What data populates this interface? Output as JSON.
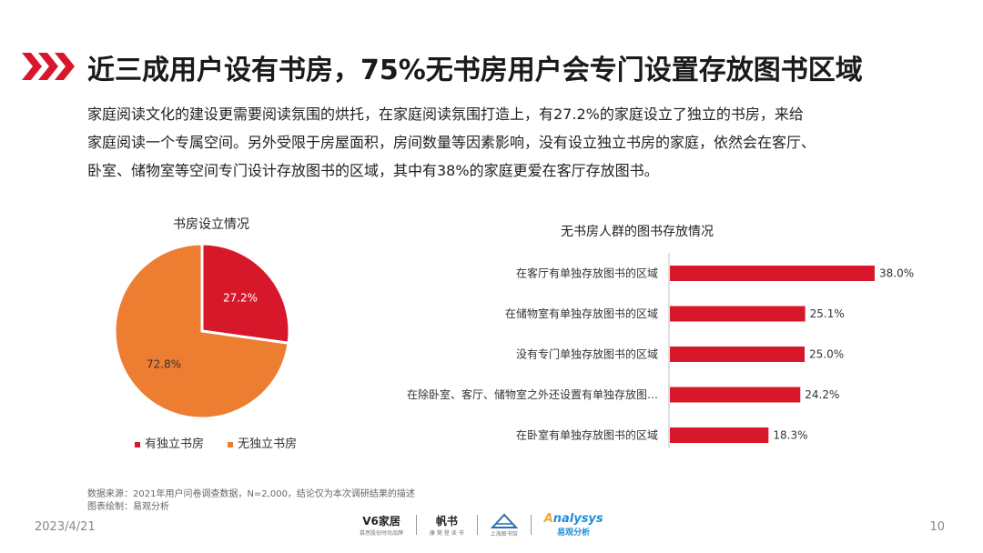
{
  "title": "近三成用户设有书房，75%无书房用户会专门设置存放图书区域",
  "intro_lines": [
    "家庭阅读文化的建设更需要阅读氛围的烘托，在家庭阅读氛围打造上，有27.2%的家庭设立了独立的书房，来给",
    "家庭阅读一个专属空间。另外受限于房屋面积，房间数量等因素影响，没有设立独立书房的家庭，依然会在客厅、",
    "卧室、储物室等空间专门设计存放图书的区域，其中有38%的家庭更爱在客厅存放图书。"
  ],
  "colors": {
    "accent": "#d7182a",
    "orange": "#ed7d31"
  },
  "chart_data": [
    {
      "type": "pie",
      "title": "书房设立情况",
      "slices": [
        {
          "label": "有独立书房",
          "value": 27.2,
          "display": "27.2%",
          "color": "#d7182a"
        },
        {
          "label": "无独立书房",
          "value": 72.8,
          "display": "72.8%",
          "color": "#ed7d31"
        }
      ],
      "legend_placement": "bottom"
    },
    {
      "type": "bar",
      "orientation": "horizontal",
      "title": "无书房人群的图书存放情况",
      "categories": [
        "在客厅有单独存放图书的区域",
        "在储物室有单独存放图书的区域",
        "没有专门单独存放图书的区域",
        "在除卧室、客厅、储物室之外还设置有单独存放图…",
        "在卧室有单独存放图书的区域"
      ],
      "values": [
        38.0,
        25.1,
        25.0,
        24.2,
        18.3
      ],
      "value_labels": [
        "38.0%",
        "25.1%",
        "25.0%",
        "24.2%",
        "18.3%"
      ],
      "color": "#d7182a",
      "grid": false
    }
  ],
  "source": {
    "line1": "数据来源：2021年用户问卷调查数据，N=2,000，结论仅为本次调研结果的描述",
    "line2": "图表绘制：易观分析"
  },
  "footer": {
    "date": "2023/4/21",
    "page": "10",
    "logos": {
      "v6": "V6家居",
      "v6_sub": "慕思股份时尚品牌",
      "fanshu": "帆书",
      "fanshu_sub": "康 樊 登 读 书",
      "third_sub": "上海图书馆",
      "analysys": "nalysys",
      "analysys_a": "A",
      "analysys_sub": "易观分析"
    }
  }
}
